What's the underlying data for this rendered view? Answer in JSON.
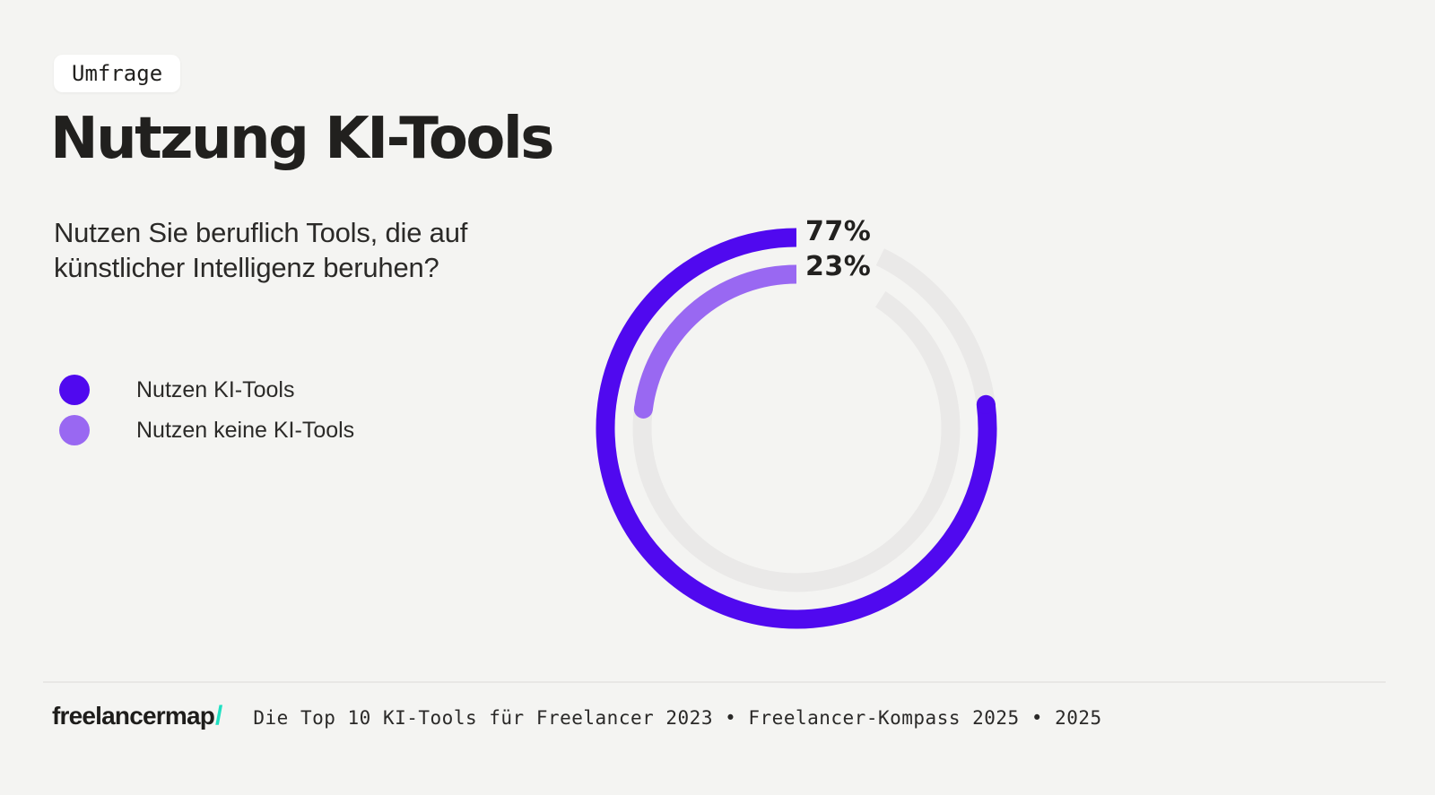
{
  "page": {
    "background": "#F4F4F2"
  },
  "badge": {
    "label": "Umfrage"
  },
  "title": "Nutzung KI-Tools",
  "question": {
    "line1": "Nutzen Sie beruflich Tools, die auf",
    "line2": "künstlicher Intelligenz beruhen?"
  },
  "legend": [
    {
      "label": "Nutzen KI-Tools",
      "color": "#5009EF"
    },
    {
      "label": "Nutzen keine KI-Tools",
      "color": "#9968F2"
    }
  ],
  "chart_data": {
    "type": "pie",
    "variant": "concentric_ring_progress",
    "categories": [
      "Nutzen KI-Tools",
      "Nutzen keine KI-Tools"
    ],
    "values": [
      77,
      23
    ],
    "unit": "%",
    "labels": [
      "77%",
      "23%"
    ],
    "colors": [
      "#5009EF",
      "#9968F2"
    ],
    "track_color": "#EAE9E8",
    "start_angle_deg": -90,
    "direction": "counterclockwise",
    "legend_position": "left"
  },
  "footer": {
    "logo_text": "freelancermap",
    "logo_slash": "/",
    "slash_color": "#1FE0C2",
    "source": "Die Top 10 KI-Tools für Freelancer 2023 • Freelancer-Kompass 2025 • 2025"
  }
}
